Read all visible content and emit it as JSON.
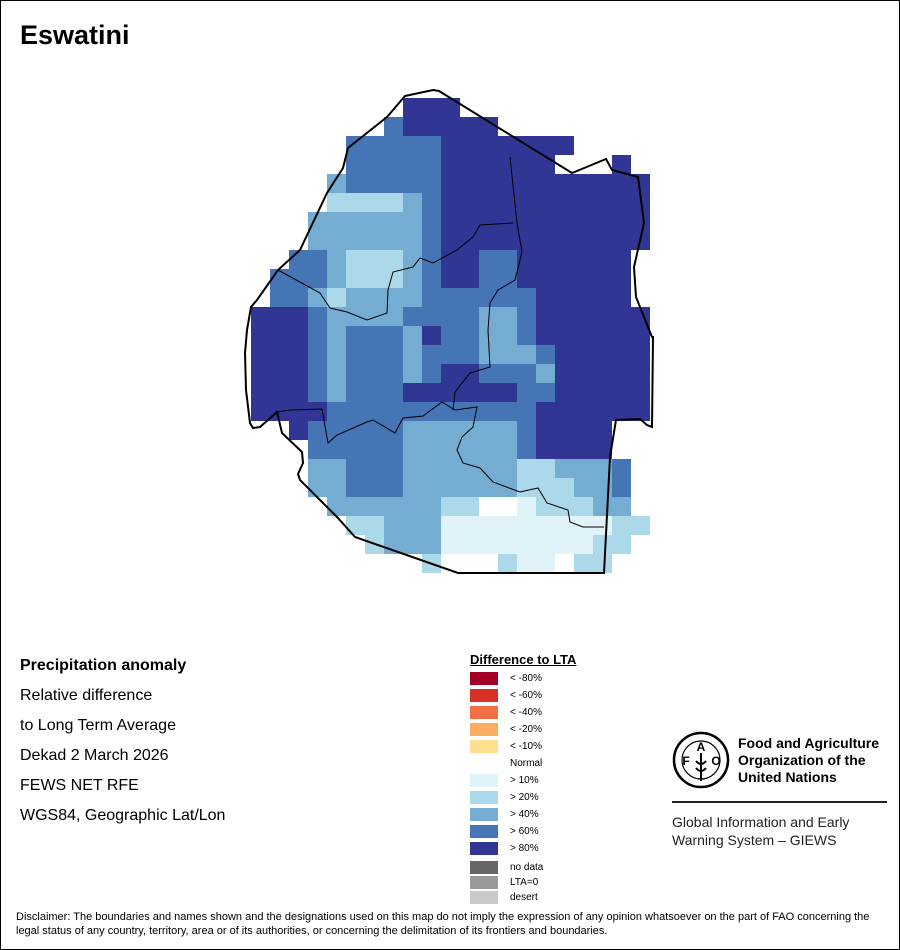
{
  "title": "Eswatini",
  "info": [
    "Precipitation anomaly",
    "Relative difference",
    "to Long Term Average",
    "Dekad 2 March 2026",
    "FEWS NET RFE",
    "WGS84, Geographic Lat/Lon"
  ],
  "legend": {
    "title": "Difference to LTA",
    "classes": [
      {
        "label": "< -80%",
        "color": "#a50026"
      },
      {
        "label": "< -60%",
        "color": "#d73027"
      },
      {
        "label": "< -40%",
        "color": "#f46d43"
      },
      {
        "label": "< -20%",
        "color": "#fdae61"
      },
      {
        "label": "< -10%",
        "color": "#fee090"
      },
      {
        "label": "Normal",
        "color": ""
      },
      {
        "label": "> 10%",
        "color": "#e0f3f8"
      },
      {
        "label": "> 20%",
        "color": "#abd9e9"
      },
      {
        "label": "> 40%",
        "color": "#74add1"
      },
      {
        "label": "> 60%",
        "color": "#4575b4"
      },
      {
        "label": "> 80%",
        "color": "#313695"
      }
    ],
    "extra": [
      {
        "label": "no data",
        "color": "#666666"
      },
      {
        "label": "LTA=0",
        "color": "#999999"
      },
      {
        "label": "desert",
        "color": "#c8c8c8"
      }
    ]
  },
  "raster": {
    "class_colors": {
      "1": "#e0f3f8",
      "2": "#abd9e9",
      "3": "#74add1",
      "4": "#4575b4",
      "5": "#313695"
    },
    "rows": [
      "........555..........",
      ".......455555........",
      ".....444445555555....",
      ".....4444455555500.5..",
      "....34444455555555555.",
      "....22223455555555555",
      "...333333455555555555",
      "...333333455555555555",
      "..4432223455445555550",
      ".44432223455445555550",
      ".44323333444444555550",
      "555433334444334555555",
      "555434443544334555555",
      "555434443444333455555",
      "555434443455444355555",
      "555434445555554455555",
      "555544444444444555555",
      "..54444433333345555..",
      "...4444433333345555..",
      "...33444333333223334..",
      "...33444333333222334..",
      "....3333332200122233..",
      ".....2233311111111122..",
      "......23331111111122..",
      ".........2000211022.."
    ]
  },
  "fao": {
    "logo_letters": "FAO FIAT PANIS",
    "name_lines": [
      "Food and Agriculture",
      "Organization of the",
      "United Nations"
    ],
    "giews_lines": [
      "Global Information and Early",
      "Warning System – GIEWS"
    ]
  },
  "disclaimer": "Disclaimer: The boundaries and names shown and the designations used on this map do not imply the expression of any opinion whatsoever on the part of FAO concerning the legal status of any country, territory, area or of its authorities, or concerning the delimitation of its frontiers and boundaries."
}
